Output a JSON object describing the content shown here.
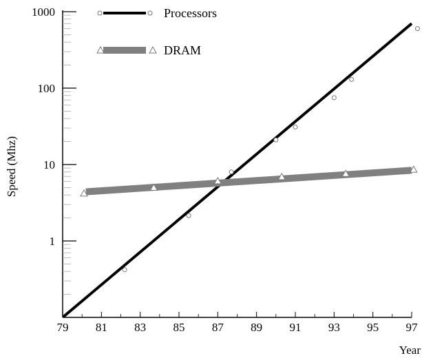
{
  "chart_data": {
    "type": "line",
    "title": "",
    "xlabel": "Year",
    "ylabel": "Speed (Mhz)",
    "y_scale": "log",
    "xlim": [
      79,
      97
    ],
    "ylim": [
      0.1,
      1000
    ],
    "x_ticks": [
      "79",
      "81",
      "83",
      "85",
      "87",
      "89",
      "91",
      "93",
      "95",
      "97"
    ],
    "y_ticks": [
      {
        "value": 1000,
        "label": "1000"
      },
      {
        "value": 100,
        "label": "100"
      },
      {
        "value": 10,
        "label": "10"
      },
      {
        "value": 1,
        "label": "1"
      }
    ],
    "legend_position": "top-left",
    "series": [
      {
        "name": "Processors",
        "marker": "circle",
        "color": "#000000",
        "trend": {
          "x": [
            79,
            97
          ],
          "y": [
            0.1,
            700
          ]
        },
        "points": {
          "x": [
            82.2,
            85.5,
            87.7,
            90,
            91,
            93,
            93.9,
            97.3
          ],
          "y": [
            0.42,
            2.15,
            8,
            21,
            31,
            75,
            130,
            600
          ]
        }
      },
      {
        "name": "DRAM",
        "marker": "triangle",
        "color": "#808080",
        "trend": {
          "x": [
            80.2,
            97
          ],
          "y": [
            4.4,
            8.4
          ]
        },
        "points": {
          "x": [
            80.1,
            83.7,
            87,
            90.3,
            93.6,
            97.1
          ],
          "y": [
            4.2,
            5,
            6.1,
            6.9,
            7.6,
            8.6
          ]
        }
      }
    ]
  }
}
